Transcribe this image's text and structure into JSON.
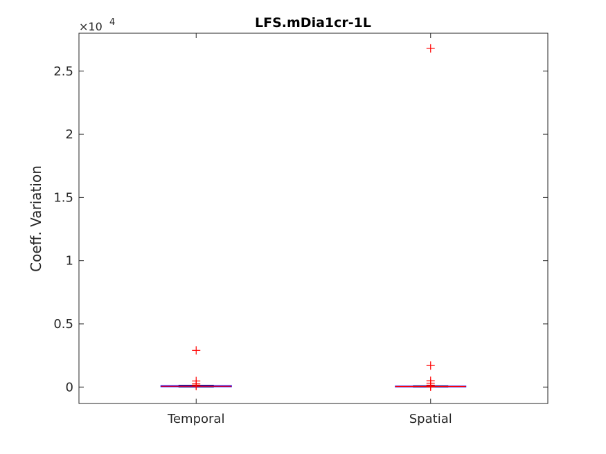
{
  "chart_data": {
    "type": "box",
    "title": "LFS.mDia1cr-1L",
    "xlabel": "",
    "ylabel": "Coeff. Variation",
    "y_exponent_label": "×10",
    "y_exponent": "4",
    "ylim": [
      -1300,
      28000
    ],
    "yticks": [
      0,
      5000,
      10000,
      15000,
      20000,
      25000
    ],
    "ytick_labels": [
      "0",
      "0.5",
      "1",
      "1.5",
      "2",
      "2.5"
    ],
    "categories": [
      "Temporal",
      "Spatial"
    ],
    "boxes": [
      {
        "category": "Temporal",
        "whisker_low": 0,
        "q1": 20,
        "median": 60,
        "q3": 120,
        "whisker_high": 150,
        "outliers": [
          2900,
          480,
          250,
          120,
          80
        ]
      },
      {
        "category": "Spatial",
        "whisker_low": 0,
        "q1": 10,
        "median": 40,
        "q3": 80,
        "whisker_high": 100,
        "outliers": [
          26800,
          1700,
          500,
          300,
          150,
          60,
          20
        ]
      }
    ],
    "colors": {
      "box": "#0000ff",
      "median": "#ff0000",
      "outlier": "#ff0000",
      "whisker": "#000000"
    },
    "grid": false,
    "legend": "none"
  }
}
